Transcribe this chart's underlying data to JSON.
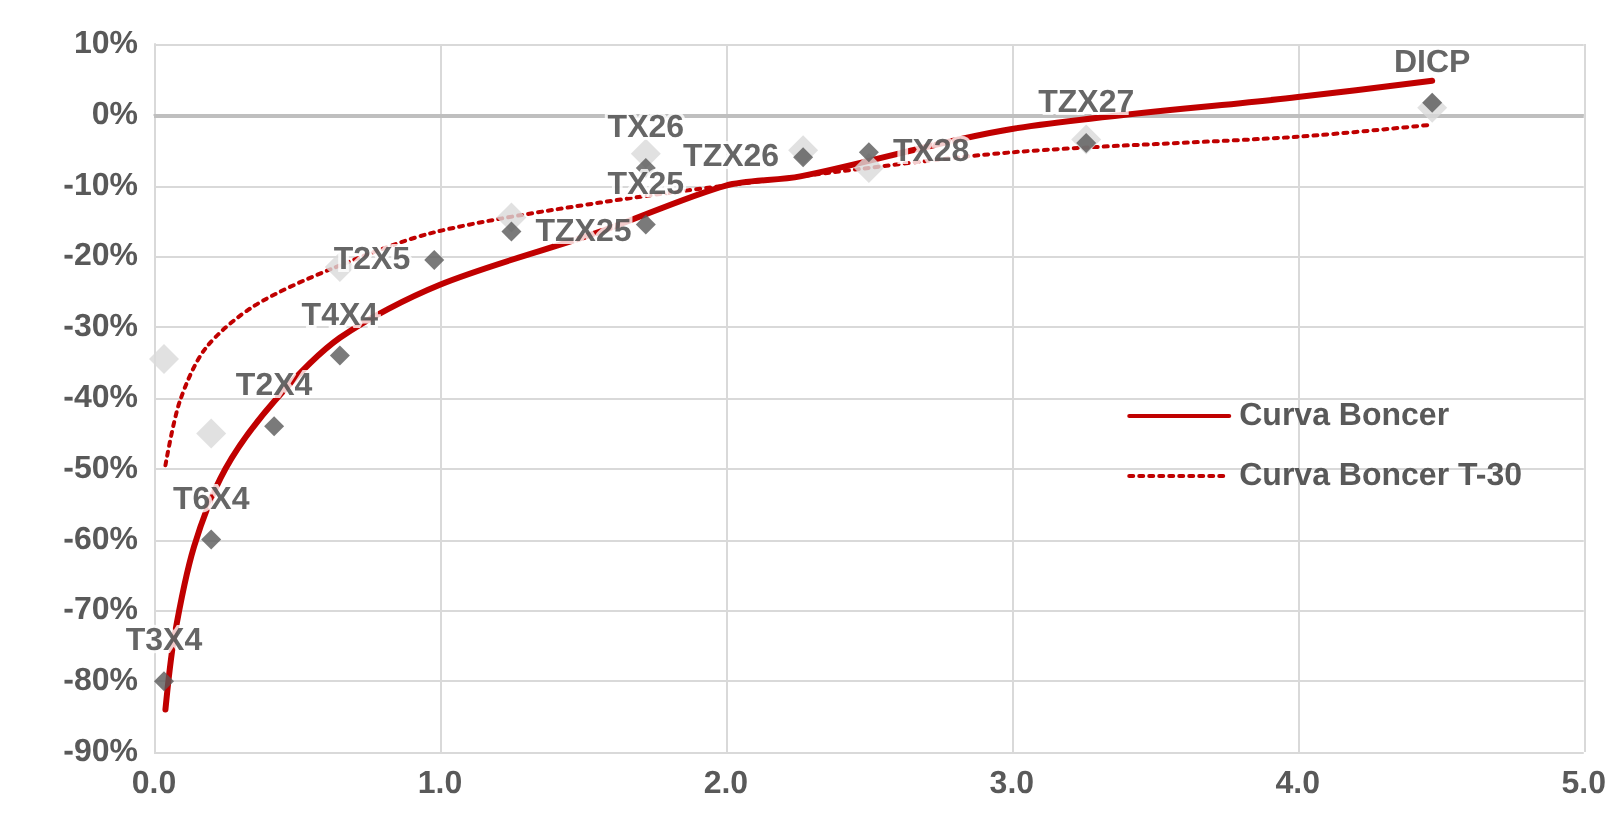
{
  "chart_data": {
    "type": "scatter",
    "xlim": [
      0,
      5
    ],
    "xticks": [
      {
        "value": 0,
        "label": "0.0"
      },
      {
        "value": 1,
        "label": "1.0"
      },
      {
        "value": 2,
        "label": "2.0"
      },
      {
        "value": 3,
        "label": "3.0"
      },
      {
        "value": 4,
        "label": "4.0"
      },
      {
        "value": 5,
        "label": "5.0"
      }
    ],
    "ylim": [
      -90,
      10
    ],
    "yticks": [
      {
        "value": -90,
        "label": "-90%"
      },
      {
        "value": -80,
        "label": "-80%"
      },
      {
        "value": -70,
        "label": "-70%"
      },
      {
        "value": -60,
        "label": "-60%"
      },
      {
        "value": -50,
        "label": "-50%"
      },
      {
        "value": -40,
        "label": "-40%"
      },
      {
        "value": -30,
        "label": "-30%"
      },
      {
        "value": -20,
        "label": "-20%"
      },
      {
        "value": -10,
        "label": "-10%"
      },
      {
        "value": 0,
        "label": "0%"
      },
      {
        "value": 10,
        "label": "10%"
      }
    ],
    "grid": true,
    "legend": "right",
    "marker": "diamond",
    "ref_lines": [
      {
        "axis": "y",
        "value": 0,
        "color": "#bfbfbf"
      }
    ],
    "series": [
      {
        "color": "#d9d9d9",
        "x": [
          0.035,
          0.2,
          0.65,
          1.25,
          1.72,
          2.27,
          2.5,
          3.26,
          4.47
        ],
        "values": [
          -34.5,
          -45,
          -21.5,
          -14.5,
          -5.5,
          -5,
          -7.5,
          -3.5,
          1
        ]
      },
      {
        "color": "#595959",
        "x": [
          0.035,
          0.2,
          0.42,
          0.65,
          0.98,
          1.25,
          1.72,
          1.72,
          2.27,
          2.5,
          3.26,
          4.47
        ],
        "values": [
          -80,
          -60,
          -44,
          -34,
          -20.5,
          -16.5,
          -7.5,
          -15.5,
          -6,
          -5.3,
          -4,
          1.7
        ],
        "value_labels": [
          "T3X4",
          "T6X4",
          "T2X4",
          "T4X4",
          "T2X5",
          "TZX25",
          "TX26",
          "TX25",
          "TZX26",
          "TX28",
          "TZX27",
          "DICP"
        ]
      },
      {
        "type": "line",
        "name": "Curva Boncer",
        "color": "#c00000",
        "marker": "none",
        "line_style": "solid",
        "x": [
          0.04,
          0.07,
          0.14,
          0.25,
          0.42,
          0.65,
          1.0,
          1.56,
          2.0,
          2.26,
          3.0,
          4.0,
          4.47
        ],
        "values": [
          -84,
          -74,
          -61,
          -50,
          -40.5,
          -31.5,
          -24,
          -16.5,
          -10,
          -8.7,
          -2,
          2.5,
          4.8
        ]
      },
      {
        "type": "line",
        "name": "Curva Boncer T-30",
        "color": "#c00000",
        "marker": "none",
        "line_style": "dotted",
        "x": [
          0.04,
          0.09,
          0.18,
          0.35,
          0.63,
          0.98,
          1.56,
          2.26,
          3.0,
          4.0,
          4.47
        ],
        "values": [
          -49.5,
          -40.5,
          -33,
          -27,
          -21.6,
          -16.6,
          -12.4,
          -8.7,
          -5.3,
          -3.1,
          -1.4
        ]
      }
    ]
  }
}
